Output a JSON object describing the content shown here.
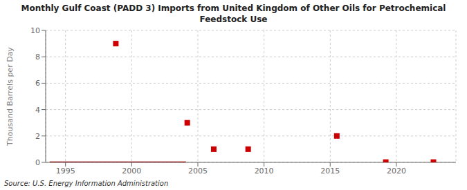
{
  "chart_data": {
    "type": "scatter",
    "title": "Monthly Gulf Coast (PADD 3) Imports from United Kingdom of Other Oils for Petrochemical\nFeedstock Use",
    "y_label": "Thousand Barrels per Day",
    "annotation": "Source: U.S. Energy Information Administration",
    "xlim": [
      1993.5,
      2024.5
    ],
    "ylim": [
      0,
      10
    ],
    "xticks": [
      1995,
      2000,
      2005,
      2010,
      2015,
      2020
    ],
    "yticks": [
      0,
      2,
      4,
      6,
      8,
      10
    ],
    "grid": true,
    "series": [
      {
        "type": "line",
        "color": "#8b0000",
        "x": [
          1993.8,
          2004.1
        ],
        "values": [
          0,
          0
        ]
      },
      {
        "type": "scatter",
        "color": "#cc0000",
        "marker": "square",
        "x": [
          1998.8,
          2004.2,
          2006.2,
          2008.8,
          2015.5,
          2019.2,
          2022.8
        ],
        "values": [
          9.0,
          3.0,
          1.0,
          1.0,
          2.0,
          0.02,
          0.02
        ]
      }
    ]
  }
}
